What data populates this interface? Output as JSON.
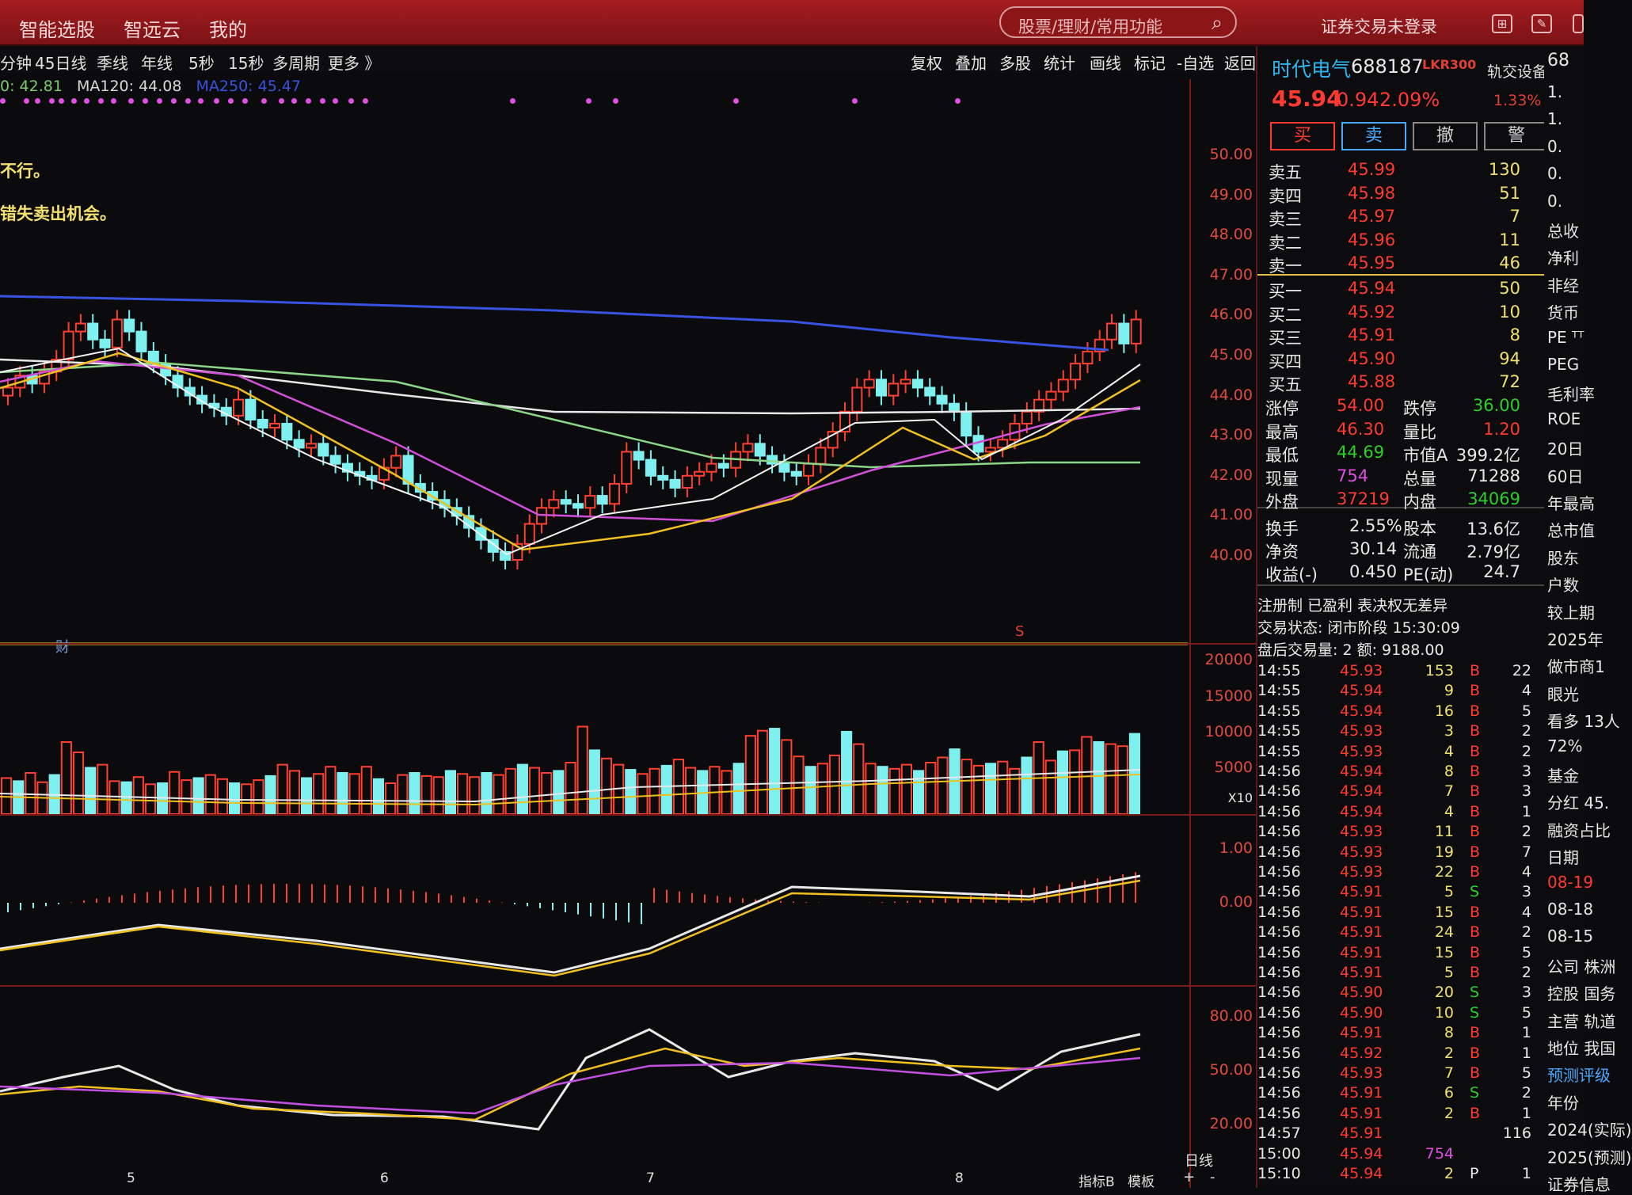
{
  "topbar": {
    "menu": [
      "智能选股",
      "智远云",
      "我的"
    ],
    "search_placeholder": "股票/理财/常用功能",
    "status": "证券交易未登录"
  },
  "periods": [
    "分钟",
    "45日线",
    "季线",
    "年线",
    "5秒",
    "15秒",
    "多周期",
    "更多 》"
  ],
  "tools": [
    "复权",
    "叠加",
    "多股",
    "统计",
    "画线",
    "标记",
    "-自选",
    "返回"
  ],
  "ma_legend": {
    "ma60": "0: 42.81",
    "ma120": "MA120: 44.08",
    "ma250": "MA250: 45.47"
  },
  "notes": [
    "不行。",
    "错失卖出机会。"
  ],
  "price_axis": [
    "50.00",
    "49.00",
    "48.00",
    "47.00",
    "46.00",
    "45.00",
    "44.00",
    "43.00",
    "42.00",
    "41.00",
    "40.00"
  ],
  "vol_axis": [
    "20000",
    "15000",
    "10000",
    "5000",
    "X10"
  ],
  "macd_axis": [
    "1.00",
    "0.00"
  ],
  "kdj_axis": [
    "80.00",
    "50.00",
    "20.00"
  ],
  "xaxis": [
    "5",
    "6",
    "7",
    "8"
  ],
  "markers": {
    "cai": "财",
    "s": "S"
  },
  "footer": {
    "period": "日线",
    "indicator": "指标B",
    "template": "模板",
    "plus": "+",
    "minus": "-"
  },
  "stock": {
    "name": "时代电气",
    "code": "688187",
    "tag": "LKR300",
    "device": "轨交设备",
    "price": "45.94",
    "change": "0.94",
    "pct": "2.09%",
    "right_pct": "1.33%",
    "code_cut": "68"
  },
  "buttons": [
    "买",
    "卖",
    "撤",
    "警"
  ],
  "asks": [
    [
      "卖五",
      "45.99",
      "130"
    ],
    [
      "卖四",
      "45.98",
      "51"
    ],
    [
      "卖三",
      "45.97",
      "7"
    ],
    [
      "卖二",
      "45.96",
      "11"
    ],
    [
      "卖一",
      "45.95",
      "46"
    ]
  ],
  "bids": [
    [
      "买一",
      "45.94",
      "50"
    ],
    [
      "买二",
      "45.92",
      "10"
    ],
    [
      "买三",
      "45.91",
      "8"
    ],
    [
      "买四",
      "45.90",
      "94"
    ],
    [
      "买五",
      "45.88",
      "72"
    ]
  ],
  "stats": [
    [
      "涨停",
      "54.00",
      "跌停",
      "36.00"
    ],
    [
      "最高",
      "46.30",
      "量比",
      "1.20"
    ],
    [
      "最低",
      "44.69",
      "市值A",
      "399.2亿"
    ],
    [
      "现量",
      "754",
      "总量",
      "71288"
    ],
    [
      "外盘",
      "37219",
      "内盘",
      "34069"
    ]
  ],
  "stats2": [
    [
      "换手",
      "2.55%",
      "股本",
      "13.6亿"
    ],
    [
      "净资",
      "30.14",
      "流通",
      "2.79亿"
    ],
    [
      "收益(-)",
      "0.450",
      "PE(动)",
      "24.7"
    ]
  ],
  "info": [
    "注册制 已盈利 表决权无差异",
    "交易状态: 闭市阶段 15:30:09",
    "盘后交易量: 2  额: 9188.00"
  ],
  "ticks": [
    [
      "14:55",
      "45.93",
      "153",
      "B",
      "22"
    ],
    [
      "14:55",
      "45.94",
      "9",
      "B",
      "4"
    ],
    [
      "14:55",
      "45.94",
      "16",
      "B",
      "5"
    ],
    [
      "14:55",
      "45.93",
      "3",
      "B",
      "2"
    ],
    [
      "14:55",
      "45.93",
      "4",
      "B",
      "2"
    ],
    [
      "14:56",
      "45.94",
      "8",
      "B",
      "3"
    ],
    [
      "14:56",
      "45.94",
      "7",
      "B",
      "3"
    ],
    [
      "14:56",
      "45.94",
      "4",
      "B",
      "1"
    ],
    [
      "14:56",
      "45.93",
      "11",
      "B",
      "2"
    ],
    [
      "14:56",
      "45.93",
      "19",
      "B",
      "7"
    ],
    [
      "14:56",
      "45.93",
      "22",
      "B",
      "4"
    ],
    [
      "14:56",
      "45.91",
      "5",
      "S",
      "3"
    ],
    [
      "14:56",
      "45.91",
      "15",
      "B",
      "4"
    ],
    [
      "14:56",
      "45.91",
      "24",
      "B",
      "2"
    ],
    [
      "14:56",
      "45.91",
      "15",
      "B",
      "5"
    ],
    [
      "14:56",
      "45.91",
      "5",
      "B",
      "2"
    ],
    [
      "14:56",
      "45.90",
      "20",
      "S",
      "3"
    ],
    [
      "14:56",
      "45.90",
      "10",
      "S",
      "5"
    ],
    [
      "14:56",
      "45.91",
      "8",
      "B",
      "1"
    ],
    [
      "14:56",
      "45.92",
      "2",
      "B",
      "1"
    ],
    [
      "14:56",
      "45.93",
      "7",
      "B",
      "5"
    ],
    [
      "14:56",
      "45.91",
      "6",
      "S",
      "2"
    ],
    [
      "14:56",
      "45.91",
      "2",
      "B",
      "1"
    ],
    [
      "14:57",
      "45.91",
      "",
      "",
      "116"
    ],
    [
      "15:00",
      "45.94",
      "754",
      "",
      ""
    ],
    [
      "15:10",
      "45.94",
      "2",
      "P",
      "1"
    ]
  ],
  "side": [
    "1.",
    "1.",
    "0.",
    "0.",
    "0.",
    "总收",
    "净利",
    "非经",
    "货币",
    "PE ᵀᵀ",
    "PEG",
    "毛利率",
    "ROE",
    "20日",
    "60日",
    "年最高",
    "总市值",
    "股东",
    "户数",
    "较上期",
    "2025年",
    "做市商1",
    "眼光",
    "看多 13人",
    "72%",
    "基金",
    "分红 45.",
    "融资占比",
    "日期",
    "08-19",
    "08-18",
    "08-15",
    "公司 株洲",
    "控股 国务",
    "主营 轨道",
    "地位 我国",
    "预测评级",
    "年份",
    "2024(实际)",
    "2025(预测)",
    "证券信息"
  ]
}
